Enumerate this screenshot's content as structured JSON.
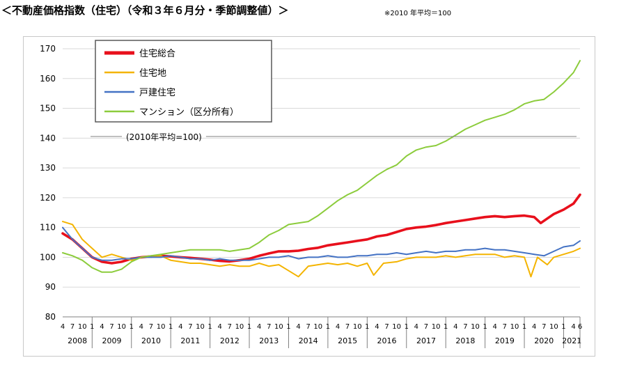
{
  "title": "＜不動産価格指数（住宅）（令和３年６月分・季節調整値）＞",
  "note": "※2010 年平均＝100",
  "chart_data": {
    "type": "line",
    "annotation": "(2010年平均=100)",
    "ylim": [
      80,
      170
    ],
    "yticks": [
      "80",
      "90",
      "100",
      "110",
      "120",
      "130",
      "140",
      "150",
      "160",
      "170"
    ],
    "grid": true,
    "legend": "top-left",
    "month_ticks": [
      "1",
      "4",
      "7",
      "10"
    ],
    "years": [
      "2008",
      "2009",
      "2010",
      "2011",
      "2012",
      "2013",
      "2014",
      "2015",
      "2016",
      "2017",
      "2018",
      "2019",
      "2020",
      "2021"
    ],
    "last_year_ticks": [
      "1",
      "4",
      "6"
    ],
    "x_start": "2008-04",
    "x_end": "2021-06",
    "series": [
      {
        "name": "住宅総合",
        "color": "#e8101c",
        "points": [
          [
            "2008-04",
            108
          ],
          [
            "2008-07",
            106
          ],
          [
            "2008-10",
            103
          ],
          [
            "2009-01",
            100
          ],
          [
            "2009-04",
            98.5
          ],
          [
            "2009-07",
            98
          ],
          [
            "2009-10",
            98.5
          ],
          [
            "2010-01",
            99.5
          ],
          [
            "2010-04",
            100
          ],
          [
            "2010-07",
            100.3
          ],
          [
            "2010-10",
            100.5
          ],
          [
            "2011-01",
            100.3
          ],
          [
            "2011-04",
            100
          ],
          [
            "2011-07",
            99.8
          ],
          [
            "2011-10",
            99.5
          ],
          [
            "2012-01",
            99.2
          ],
          [
            "2012-04",
            98.8
          ],
          [
            "2012-07",
            98.6
          ],
          [
            "2012-10",
            99
          ],
          [
            "2013-01",
            99.5
          ],
          [
            "2013-04",
            100.5
          ],
          [
            "2013-07",
            101.3
          ],
          [
            "2013-10",
            102
          ],
          [
            "2014-01",
            102
          ],
          [
            "2014-04",
            102.2
          ],
          [
            "2014-07",
            102.8
          ],
          [
            "2014-10",
            103.2
          ],
          [
            "2015-01",
            104
          ],
          [
            "2015-04",
            104.5
          ],
          [
            "2015-07",
            105
          ],
          [
            "2015-10",
            105.5
          ],
          [
            "2016-01",
            106
          ],
          [
            "2016-04",
            107
          ],
          [
            "2016-07",
            107.5
          ],
          [
            "2016-10",
            108.5
          ],
          [
            "2017-01",
            109.5
          ],
          [
            "2017-04",
            110
          ],
          [
            "2017-07",
            110.3
          ],
          [
            "2017-10",
            110.8
          ],
          [
            "2018-01",
            111.5
          ],
          [
            "2018-04",
            112
          ],
          [
            "2018-07",
            112.5
          ],
          [
            "2018-10",
            113
          ],
          [
            "2019-01",
            113.5
          ],
          [
            "2019-04",
            113.8
          ],
          [
            "2019-07",
            113.5
          ],
          [
            "2019-10",
            113.8
          ],
          [
            "2020-01",
            114
          ],
          [
            "2020-04",
            113.5
          ],
          [
            "2020-06",
            111.5
          ],
          [
            "2020-08",
            113
          ],
          [
            "2020-10",
            114.5
          ],
          [
            "2021-01",
            116
          ],
          [
            "2021-04",
            118
          ],
          [
            "2021-06",
            121
          ]
        ]
      },
      {
        "name": "住宅地",
        "color": "#f4b400",
        "points": [
          [
            "2008-04",
            112
          ],
          [
            "2008-07",
            111
          ],
          [
            "2008-10",
            106
          ],
          [
            "2009-01",
            103
          ],
          [
            "2009-04",
            100
          ],
          [
            "2009-07",
            101
          ],
          [
            "2009-10",
            100
          ],
          [
            "2010-01",
            99
          ],
          [
            "2010-04",
            100
          ],
          [
            "2010-07",
            100
          ],
          [
            "2010-10",
            100.5
          ],
          [
            "2011-01",
            99
          ],
          [
            "2011-04",
            98.5
          ],
          [
            "2011-07",
            98
          ],
          [
            "2011-10",
            98
          ],
          [
            "2012-01",
            97.5
          ],
          [
            "2012-04",
            97
          ],
          [
            "2012-07",
            97.5
          ],
          [
            "2012-10",
            97
          ],
          [
            "2013-01",
            97
          ],
          [
            "2013-04",
            98
          ],
          [
            "2013-07",
            97
          ],
          [
            "2013-10",
            97.5
          ],
          [
            "2014-01",
            95.5
          ],
          [
            "2014-04",
            93.5
          ],
          [
            "2014-07",
            97
          ],
          [
            "2014-10",
            97.5
          ],
          [
            "2015-01",
            98
          ],
          [
            "2015-04",
            97.5
          ],
          [
            "2015-07",
            98
          ],
          [
            "2015-10",
            97
          ],
          [
            "2016-01",
            98
          ],
          [
            "2016-03",
            94
          ],
          [
            "2016-06",
            98
          ],
          [
            "2016-10",
            98.5
          ],
          [
            "2017-01",
            99.5
          ],
          [
            "2017-04",
            100
          ],
          [
            "2017-07",
            100
          ],
          [
            "2017-10",
            100
          ],
          [
            "2018-01",
            100.5
          ],
          [
            "2018-04",
            100
          ],
          [
            "2018-07",
            100.5
          ],
          [
            "2018-10",
            101
          ],
          [
            "2019-01",
            101
          ],
          [
            "2019-04",
            101
          ],
          [
            "2019-07",
            100
          ],
          [
            "2019-10",
            100.5
          ],
          [
            "2020-01",
            100
          ],
          [
            "2020-03",
            93.5
          ],
          [
            "2020-05",
            100
          ],
          [
            "2020-08",
            97.5
          ],
          [
            "2020-10",
            100
          ],
          [
            "2021-01",
            101
          ],
          [
            "2021-04",
            102
          ],
          [
            "2021-06",
            103
          ]
        ]
      },
      {
        "name": "戸建住宅",
        "color": "#4472c4",
        "points": [
          [
            "2008-04",
            110
          ],
          [
            "2008-07",
            106
          ],
          [
            "2008-10",
            103
          ],
          [
            "2009-01",
            100
          ],
          [
            "2009-04",
            99
          ],
          [
            "2009-07",
            99
          ],
          [
            "2009-10",
            99.5
          ],
          [
            "2010-01",
            99.5
          ],
          [
            "2010-04",
            100
          ],
          [
            "2010-07",
            100
          ],
          [
            "2010-10",
            100
          ],
          [
            "2011-01",
            100.5
          ],
          [
            "2011-04",
            100
          ],
          [
            "2011-07",
            99.5
          ],
          [
            "2011-10",
            99.5
          ],
          [
            "2012-01",
            99
          ],
          [
            "2012-04",
            99.5
          ],
          [
            "2012-07",
            99
          ],
          [
            "2012-10",
            99
          ],
          [
            "2013-01",
            99
          ],
          [
            "2013-04",
            99.5
          ],
          [
            "2013-07",
            100
          ],
          [
            "2013-10",
            100
          ],
          [
            "2014-01",
            100.5
          ],
          [
            "2014-04",
            99.5
          ],
          [
            "2014-07",
            100
          ],
          [
            "2014-10",
            100
          ],
          [
            "2015-01",
            100.5
          ],
          [
            "2015-04",
            100
          ],
          [
            "2015-07",
            100
          ],
          [
            "2015-10",
            100.5
          ],
          [
            "2016-01",
            100.5
          ],
          [
            "2016-04",
            101
          ],
          [
            "2016-07",
            101
          ],
          [
            "2016-10",
            101.5
          ],
          [
            "2017-01",
            101
          ],
          [
            "2017-04",
            101.5
          ],
          [
            "2017-07",
            102
          ],
          [
            "2017-10",
            101.5
          ],
          [
            "2018-01",
            102
          ],
          [
            "2018-04",
            102
          ],
          [
            "2018-07",
            102.5
          ],
          [
            "2018-10",
            102.5
          ],
          [
            "2019-01",
            103
          ],
          [
            "2019-04",
            102.5
          ],
          [
            "2019-07",
            102.5
          ],
          [
            "2019-10",
            102
          ],
          [
            "2020-01",
            101.5
          ],
          [
            "2020-04",
            101
          ],
          [
            "2020-07",
            100.5
          ],
          [
            "2020-10",
            102
          ],
          [
            "2021-01",
            103.5
          ],
          [
            "2021-04",
            104
          ],
          [
            "2021-06",
            105.5
          ]
        ]
      },
      {
        "name": "マンション（区分所有）",
        "color": "#8ccc3c",
        "points": [
          [
            "2008-04",
            101.5
          ],
          [
            "2008-07",
            100.5
          ],
          [
            "2008-10",
            99
          ],
          [
            "2009-01",
            96.5
          ],
          [
            "2009-04",
            95
          ],
          [
            "2009-07",
            95
          ],
          [
            "2009-10",
            96
          ],
          [
            "2010-01",
            98.5
          ],
          [
            "2010-04",
            100
          ],
          [
            "2010-07",
            100.5
          ],
          [
            "2010-10",
            101
          ],
          [
            "2011-01",
            101.5
          ],
          [
            "2011-04",
            102
          ],
          [
            "2011-07",
            102.5
          ],
          [
            "2011-10",
            102.5
          ],
          [
            "2012-01",
            102.5
          ],
          [
            "2012-04",
            102.5
          ],
          [
            "2012-07",
            102
          ],
          [
            "2012-10",
            102.5
          ],
          [
            "2013-01",
            103
          ],
          [
            "2013-04",
            105
          ],
          [
            "2013-07",
            107.5
          ],
          [
            "2013-10",
            109
          ],
          [
            "2014-01",
            111
          ],
          [
            "2014-04",
            111.5
          ],
          [
            "2014-07",
            112
          ],
          [
            "2014-10",
            114
          ],
          [
            "2015-01",
            116.5
          ],
          [
            "2015-04",
            119
          ],
          [
            "2015-07",
            121
          ],
          [
            "2015-10",
            122.5
          ],
          [
            "2016-01",
            125
          ],
          [
            "2016-04",
            127.5
          ],
          [
            "2016-07",
            129.5
          ],
          [
            "2016-10",
            131
          ],
          [
            "2017-01",
            134
          ],
          [
            "2017-04",
            136
          ],
          [
            "2017-07",
            137
          ],
          [
            "2017-10",
            137.5
          ],
          [
            "2018-01",
            139
          ],
          [
            "2018-04",
            141
          ],
          [
            "2018-07",
            143
          ],
          [
            "2018-10",
            144.5
          ],
          [
            "2019-01",
            146
          ],
          [
            "2019-04",
            147
          ],
          [
            "2019-07",
            148
          ],
          [
            "2019-10",
            149.5
          ],
          [
            "2020-01",
            151.5
          ],
          [
            "2020-04",
            152.5
          ],
          [
            "2020-07",
            153
          ],
          [
            "2020-10",
            155.5
          ],
          [
            "2021-01",
            158.5
          ],
          [
            "2021-04",
            162
          ],
          [
            "2021-06",
            166
          ]
        ]
      }
    ]
  }
}
